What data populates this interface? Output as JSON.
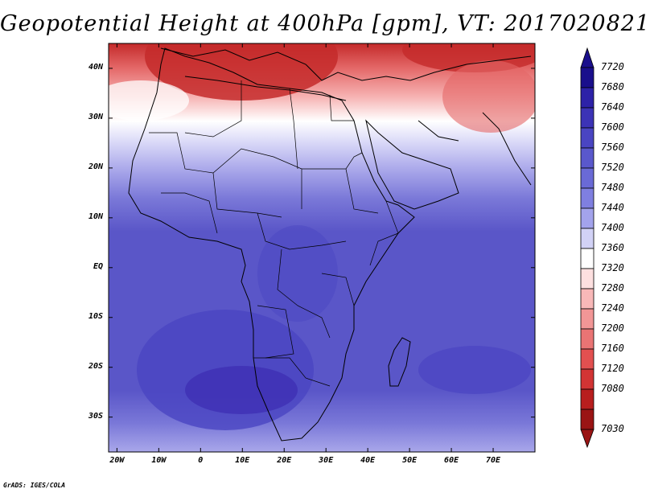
{
  "title": "Geopotential Height at 400hPa [gpm], VT: 2017020821",
  "credit": "GrADS: IGES/COLA",
  "lat_labels": [
    "40N",
    "30N",
    "20N",
    "10N",
    "EQ",
    "10S",
    "20S",
    "30S"
  ],
  "lat_values": [
    40,
    30,
    20,
    10,
    0,
    -10,
    -20,
    -30
  ],
  "lon_labels": [
    "20W",
    "10W",
    "0",
    "10E",
    "20E",
    "30E",
    "40E",
    "50E",
    "60E",
    "70E"
  ],
  "lon_values": [
    -20,
    -10,
    0,
    10,
    20,
    30,
    40,
    50,
    60,
    70
  ],
  "map_extent": {
    "lon_min": -22,
    "lon_max": 80,
    "lat_min": -37,
    "lat_max": 45
  },
  "colorbar": {
    "levels": [
      "7720",
      "7680",
      "7640",
      "7600",
      "7560",
      "7520",
      "7480",
      "7440",
      "7400",
      "7360",
      "7320",
      "7280",
      "7240",
      "7200",
      "7160",
      "7120",
      "7080",
      "7030"
    ],
    "colors": [
      "#1a0f8c",
      "#2d22a8",
      "#3c33b6",
      "#4a45c2",
      "#5a58cc",
      "#6a6ad6",
      "#7f7fe0",
      "#a3a3ec",
      "#d2d2f6",
      "#ffffff",
      "#fde0e0",
      "#f8b8b8",
      "#f29696",
      "#ea7474",
      "#e25050",
      "#d23434",
      "#b81e1e",
      "#9a1414"
    ]
  },
  "field_colors": {
    "deep_blue": "#3e30b4",
    "mid_blue": "#5a56c8",
    "light_blue": "#7a78d8",
    "pale_blue": "#a9a7ea",
    "very_pale": "#d4d3f6",
    "white": "#ffffff",
    "light_red": "#f6b2b2",
    "mid_red": "#e46868",
    "deep_red": "#c42a2a"
  }
}
